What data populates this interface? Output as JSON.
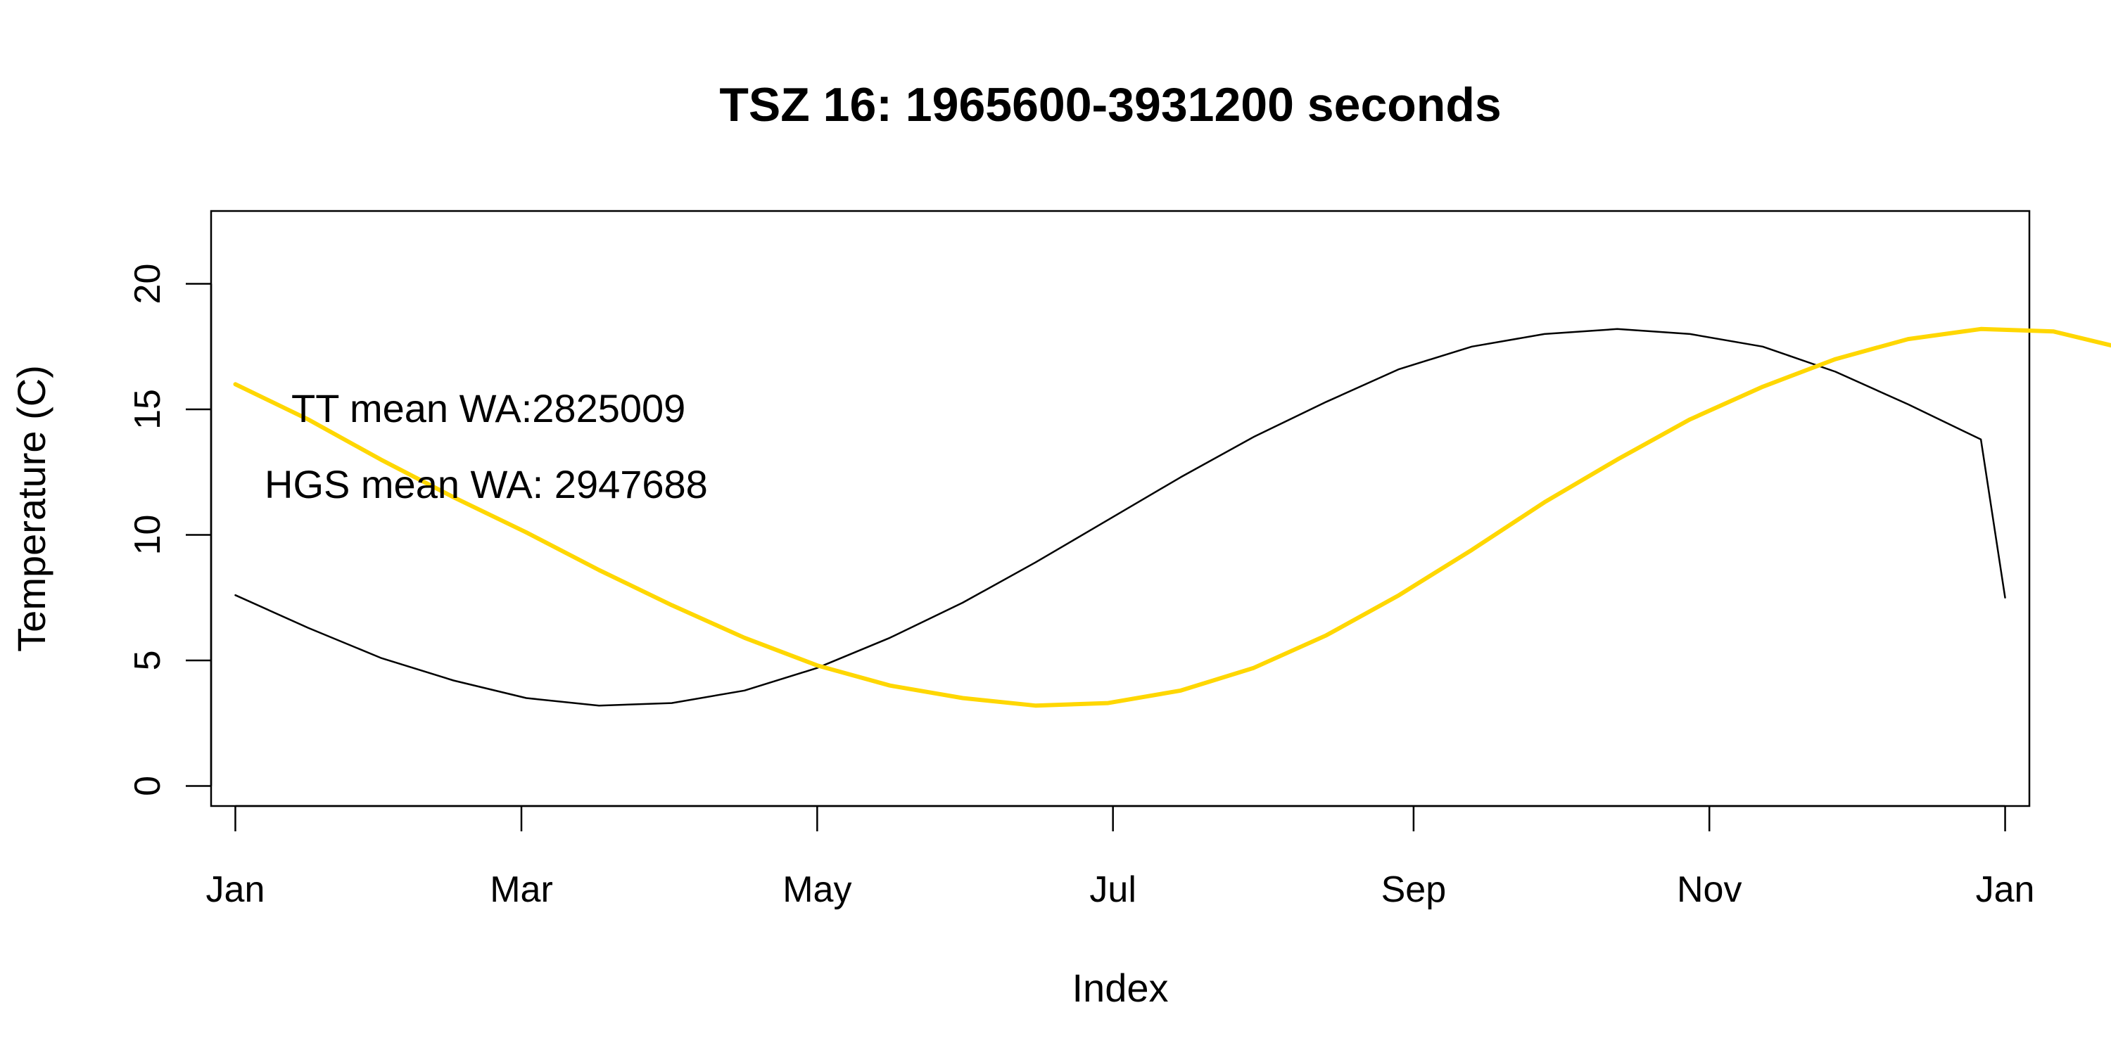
{
  "chart_data": {
    "type": "line",
    "title": "TSZ 16: 1965600-3931200 seconds",
    "xlabel": "Index",
    "ylabel": "Temperature (C)",
    "xlim": [
      "2010-12-27",
      "2012-01-06"
    ],
    "ylim": [
      -0.8,
      22.9
    ],
    "grid": false,
    "x_ticks": [
      {
        "date": "2011-01-01",
        "label": "Jan"
      },
      {
        "date": "2011-03-01",
        "label": "Mar"
      },
      {
        "date": "2011-05-01",
        "label": "May"
      },
      {
        "date": "2011-07-01",
        "label": "Jul"
      },
      {
        "date": "2011-09-01",
        "label": "Sep"
      },
      {
        "date": "2011-11-01",
        "label": "Nov"
      },
      {
        "date": "2012-01-01",
        "label": "Jan"
      }
    ],
    "y_ticks": [
      0,
      5,
      10,
      15,
      20
    ],
    "annotations": [
      "TT mean WA:2825009",
      "HGS mean WA: 2947688"
    ],
    "series": [
      {
        "color": "#000000",
        "style": "thin",
        "points": [
          [
            "2011-01-01",
            7.6
          ],
          [
            "2011-01-16",
            6.3
          ],
          [
            "2011-01-31",
            5.1
          ],
          [
            "2011-02-15",
            4.2
          ],
          [
            "2011-03-02",
            3.5
          ],
          [
            "2011-03-17",
            3.2
          ],
          [
            "2011-04-01",
            3.3
          ],
          [
            "2011-04-16",
            3.8
          ],
          [
            "2011-05-01",
            4.7
          ],
          [
            "2011-05-16",
            5.9
          ],
          [
            "2011-05-31",
            7.3
          ],
          [
            "2011-06-15",
            8.9
          ],
          [
            "2011-06-30",
            10.6
          ],
          [
            "2011-07-15",
            12.3
          ],
          [
            "2011-07-30",
            13.9
          ],
          [
            "2011-08-14",
            15.3
          ],
          [
            "2011-08-29",
            16.6
          ],
          [
            "2011-09-13",
            17.5
          ],
          [
            "2011-09-28",
            18.0
          ],
          [
            "2011-10-13",
            18.2
          ],
          [
            "2011-10-28",
            18.0
          ],
          [
            "2011-11-12",
            17.5
          ],
          [
            "2011-11-27",
            16.5
          ],
          [
            "2011-12-12",
            15.2
          ],
          [
            "2011-12-27",
            13.8
          ],
          [
            "2012-01-01",
            7.5
          ]
        ]
      },
      {
        "color": "#FFD700",
        "style": "thick",
        "points": [
          [
            "2011-01-01",
            16.0
          ],
          [
            "2011-01-16",
            14.6
          ],
          [
            "2011-01-31",
            13.0
          ],
          [
            "2011-02-15",
            11.5
          ],
          [
            "2011-03-02",
            10.1
          ],
          [
            "2011-03-17",
            8.6
          ],
          [
            "2011-04-01",
            7.2
          ],
          [
            "2011-04-16",
            5.9
          ],
          [
            "2011-05-01",
            4.8
          ],
          [
            "2011-05-16",
            4.0
          ],
          [
            "2011-05-31",
            3.5
          ],
          [
            "2011-06-15",
            3.2
          ],
          [
            "2011-06-30",
            3.3
          ],
          [
            "2011-07-15",
            3.8
          ],
          [
            "2011-07-30",
            4.7
          ],
          [
            "2011-08-14",
            6.0
          ],
          [
            "2011-08-29",
            7.6
          ],
          [
            "2011-09-13",
            9.4
          ],
          [
            "2011-09-28",
            11.3
          ],
          [
            "2011-10-13",
            13.0
          ],
          [
            "2011-10-28",
            14.6
          ],
          [
            "2011-11-12",
            15.9
          ],
          [
            "2011-11-27",
            17.0
          ],
          [
            "2011-12-12",
            17.8
          ],
          [
            "2011-12-27",
            18.2
          ],
          [
            "2012-01-11",
            18.1
          ],
          [
            "2012-01-26",
            17.4
          ]
        ]
      }
    ]
  }
}
